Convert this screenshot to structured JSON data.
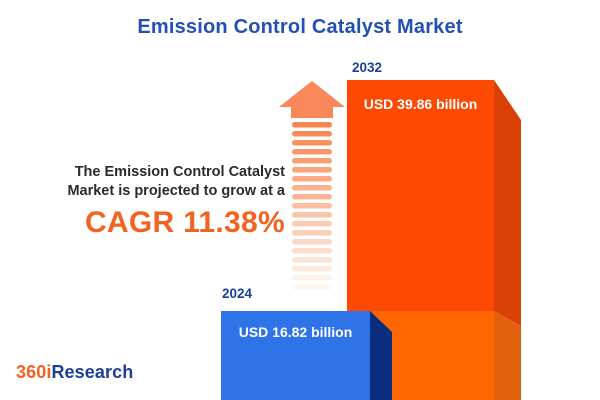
{
  "title": "Emission Control Catalyst Market",
  "description": {
    "line1": "The Emission Control Catalyst",
    "line2": "Market is projected to grow at a",
    "cagr": "CAGR 11.38%"
  },
  "chart_data": {
    "type": "bar",
    "categories": [
      "2024",
      "2032"
    ],
    "values": [
      16.82,
      39.86
    ],
    "unit": "USD billion",
    "title": "Emission Control Catalyst Market",
    "cagr_percent": 11.38,
    "legend_position": "none",
    "grid": false
  },
  "bars": [
    {
      "year": "2024",
      "label": "USD 16.82 billion",
      "face_color": "#2e74e8",
      "side_color": "#0a2d7d"
    },
    {
      "year": "2032",
      "label": "USD 39.86 billion",
      "face_color_top": "#fc4a05",
      "face_color_bottom": "#ff6600",
      "side_color_top": "#d94005",
      "side_color_bottom": "#e2620f"
    }
  ],
  "arrow": {
    "head_color": "#f8885a",
    "stripe_top_color": "#f7854f",
    "stripe_bottom_color": "#fdf7f2",
    "stripe_count": 19
  },
  "logo": {
    "prefix": "360i",
    "suffix": "Research",
    "prefix_color": "#f26321",
    "suffix_color": "#1e3d99"
  },
  "colors": {
    "title_blue": "#2450b4",
    "year_navy": "#1c3e9e",
    "cagr_orange": "#f26321",
    "body_text": "#2b2b2b",
    "background": "#ffffff"
  }
}
